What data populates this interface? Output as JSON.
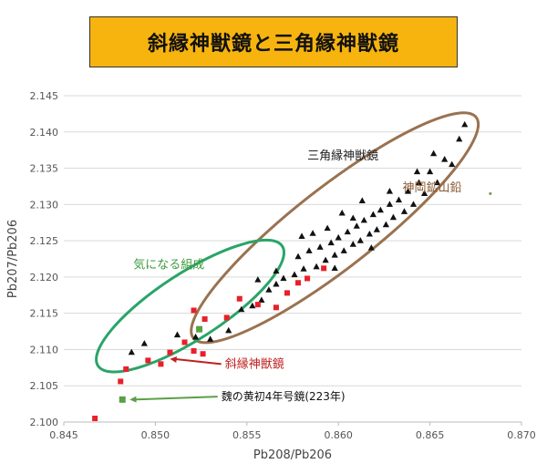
{
  "title": "斜縁神獣鏡と三角縁神獣鏡",
  "colors": {
    "title_bg": "#f7b40f",
    "triangle": "#111111",
    "square_red": "#e8202a",
    "square_green": "#5aa046",
    "ellipse_brown": "#9a7250",
    "ellipse_green": "#2aa468",
    "label_brown": "#8a5a32",
    "label_green": "#3c9a3c",
    "label_red": "#c02020",
    "grid": "#d9d9d9"
  },
  "chart_data": {
    "type": "scatter",
    "xlabel": "Pb208/Pb206",
    "ylabel": "Pb207/Pb206",
    "xlim": [
      0.845,
      0.87
    ],
    "ylim": [
      2.1,
      2.145
    ],
    "xticks": [
      "0.845",
      "0.850",
      "0.855",
      "0.860",
      "0.865",
      "0.870"
    ],
    "yticks": [
      "2.100",
      "2.105",
      "2.110",
      "2.115",
      "2.120",
      "2.125",
      "2.130",
      "2.135",
      "2.140",
      "2.145"
    ],
    "grid": "horizontal",
    "series": [
      {
        "name": "三角縁神獣鏡",
        "marker": "triangle",
        "color": "#111111",
        "points": [
          [
            0.8487,
            2.1096
          ],
          [
            0.8494,
            2.1108
          ],
          [
            0.8512,
            2.112
          ],
          [
            0.8522,
            2.1117
          ],
          [
            0.853,
            2.1114
          ],
          [
            0.854,
            2.1126
          ],
          [
            0.8547,
            2.1155
          ],
          [
            0.8553,
            2.116
          ],
          [
            0.8558,
            2.1168
          ],
          [
            0.8562,
            2.1182
          ],
          [
            0.8566,
            2.119
          ],
          [
            0.857,
            2.1198
          ],
          [
            0.8576,
            2.1203
          ],
          [
            0.8581,
            2.1211
          ],
          [
            0.8584,
            2.1236
          ],
          [
            0.8588,
            2.1214
          ],
          [
            0.859,
            2.1241
          ],
          [
            0.8593,
            2.1223
          ],
          [
            0.8596,
            2.1247
          ],
          [
            0.8598,
            2.123
          ],
          [
            0.86,
            2.1254
          ],
          [
            0.8603,
            2.1236
          ],
          [
            0.8605,
            2.1262
          ],
          [
            0.8608,
            2.1245
          ],
          [
            0.861,
            2.127
          ],
          [
            0.8612,
            2.125
          ],
          [
            0.8614,
            2.1278
          ],
          [
            0.8617,
            2.1259
          ],
          [
            0.8619,
            2.1286
          ],
          [
            0.8621,
            2.1265
          ],
          [
            0.8623,
            2.1292
          ],
          [
            0.8626,
            2.1272
          ],
          [
            0.8628,
            2.13
          ],
          [
            0.863,
            2.1282
          ],
          [
            0.8633,
            2.1306
          ],
          [
            0.8636,
            2.129
          ],
          [
            0.8638,
            2.1318
          ],
          [
            0.8641,
            2.13
          ],
          [
            0.8644,
            2.133
          ],
          [
            0.8647,
            2.1315
          ],
          [
            0.865,
            2.1345
          ],
          [
            0.8654,
            2.133
          ],
          [
            0.8658,
            2.1362
          ],
          [
            0.8662,
            2.1355
          ],
          [
            0.8666,
            2.139
          ],
          [
            0.8669,
            2.141
          ],
          [
            0.858,
            2.1256
          ],
          [
            0.8594,
            2.1267
          ],
          [
            0.8602,
            2.1288
          ],
          [
            0.8613,
            2.1305
          ],
          [
            0.8578,
            2.1228
          ],
          [
            0.8566,
            2.1208
          ],
          [
            0.8556,
            2.1196
          ],
          [
            0.8618,
            2.124
          ],
          [
            0.8598,
            2.1212
          ],
          [
            0.8628,
            2.1318
          ],
          [
            0.8643,
            2.1345
          ],
          [
            0.8652,
            2.137
          ],
          [
            0.8608,
            2.1281
          ],
          [
            0.8586,
            2.126
          ]
        ]
      },
      {
        "name": "斜縁神獣鏡",
        "marker": "square",
        "color": "#e8202a",
        "points": [
          [
            0.8467,
            2.1005
          ],
          [
            0.8481,
            2.1056
          ],
          [
            0.8484,
            2.1073
          ],
          [
            0.8496,
            2.1085
          ],
          [
            0.8503,
            2.108
          ],
          [
            0.8508,
            2.1096
          ],
          [
            0.8516,
            2.111
          ],
          [
            0.8521,
            2.1098
          ],
          [
            0.8526,
            2.1094
          ],
          [
            0.8521,
            2.1154
          ],
          [
            0.8527,
            2.1142
          ],
          [
            0.8539,
            2.1144
          ],
          [
            0.8546,
            2.117
          ],
          [
            0.8556,
            2.1162
          ],
          [
            0.8566,
            2.1158
          ],
          [
            0.8572,
            2.1178
          ],
          [
            0.8578,
            2.1192
          ],
          [
            0.8583,
            2.1198
          ],
          [
            0.8592,
            2.1212
          ]
        ]
      },
      {
        "name": "魏の黄初4年号鏡(223年)",
        "marker": "square",
        "color": "#5aa046",
        "points": [
          [
            0.8482,
            2.1031
          ],
          [
            0.8524,
            2.1128
          ]
        ]
      },
      {
        "name": "",
        "marker": "dot",
        "color": "#7fa060",
        "points": [
          [
            0.8683,
            2.1315
          ]
        ]
      }
    ],
    "regions": [
      {
        "label": "神岡鉱山鉛",
        "color": "#9a7250",
        "center": [
          0.8598,
          2.1268
        ],
        "rx_units": 0.0098,
        "ry_units": 0.0022,
        "angle_deg": -38
      },
      {
        "label": "気になる組成",
        "color": "#2aa468",
        "center": [
          0.8519,
          2.116
        ],
        "rx_units": 0.006,
        "ry_units": 0.0018,
        "angle_deg": -33
      }
    ],
    "annotations": [
      {
        "text": "三角縁神獣鏡",
        "anchor": [
          0.8583,
          2.1362
        ],
        "color": "#222222",
        "arrow_to": null
      },
      {
        "text": "神岡鉱山鉛",
        "anchor": [
          0.8635,
          2.1318
        ],
        "color": "#8a5a32",
        "arrow_to": null
      },
      {
        "text": "気になる組成",
        "anchor": [
          0.8488,
          2.1212
        ],
        "color": "#3c9a3c",
        "arrow_to": null
      },
      {
        "text": "斜縁神獣鏡",
        "anchor": [
          0.8538,
          2.1075
        ],
        "color": "#c02020",
        "arrow_to": [
          0.8508,
          2.1087
        ]
      },
      {
        "text": "魏の黄初4年号鏡(223年)",
        "anchor": [
          0.8536,
          2.103
        ],
        "color": "#111111",
        "arrow_to": [
          0.8486,
          2.1031
        ]
      }
    ]
  }
}
